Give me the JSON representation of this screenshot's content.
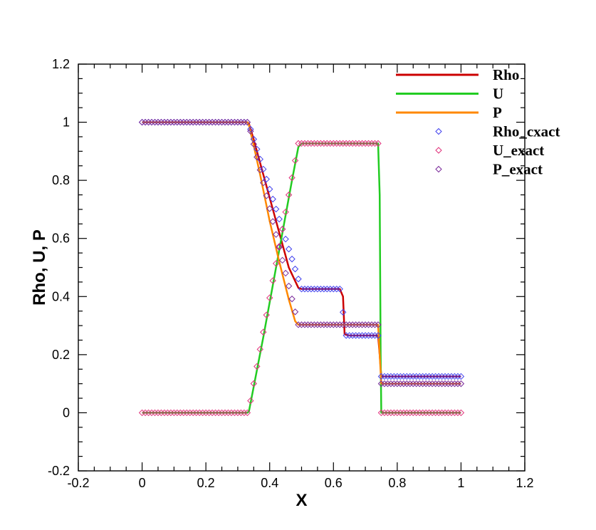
{
  "chart_data": {
    "type": "line",
    "title": "",
    "xlabel": "X",
    "ylabel": "Rho, U, P",
    "xlim": [
      -0.2,
      1.2
    ],
    "ylim": [
      -0.2,
      1.2
    ],
    "xticks": [
      "-0.2",
      "0",
      "0.2",
      "0.4",
      "0.6",
      "0.8",
      "1",
      "1.2"
    ],
    "xtick_values": [
      -0.2,
      0,
      0.2,
      0.4,
      0.6,
      0.8,
      1.0,
      1.2
    ],
    "yticks": [
      "-0.2",
      "0",
      "0.2",
      "0.4",
      "0.6",
      "0.8",
      "1",
      "1.2"
    ],
    "ytick_values": [
      -0.2,
      0,
      0.2,
      0.4,
      0.6,
      0.8,
      1.0,
      1.2
    ],
    "grid": false,
    "legend_position": "top-right",
    "series": [
      {
        "name": "Rho",
        "kind": "line",
        "color": "#cc0000",
        "x": [
          0.0,
          0.33,
          0.335,
          0.35,
          0.37,
          0.4,
          0.43,
          0.46,
          0.49,
          0.5,
          0.62,
          0.63,
          0.635,
          0.65,
          0.74,
          0.745,
          0.75,
          1.0
        ],
        "y": [
          1.0,
          1.0,
          0.995,
          0.94,
          0.86,
          0.74,
          0.62,
          0.5,
          0.43,
          0.426,
          0.426,
          0.4,
          0.27,
          0.266,
          0.266,
          0.2,
          0.125,
          0.125
        ]
      },
      {
        "name": "U",
        "kind": "line",
        "color": "#22cc22",
        "x": [
          0.0,
          0.33,
          0.335,
          0.35,
          0.38,
          0.41,
          0.44,
          0.47,
          0.49,
          0.5,
          0.74,
          0.745,
          0.748,
          0.75,
          1.0
        ],
        "y": [
          0.0,
          0.0,
          0.005,
          0.09,
          0.26,
          0.44,
          0.62,
          0.8,
          0.915,
          0.927,
          0.927,
          0.75,
          0.2,
          0.0,
          0.0
        ]
      },
      {
        "name": "P",
        "kind": "line",
        "color": "#ff8800",
        "x": [
          0.0,
          0.33,
          0.335,
          0.35,
          0.37,
          0.4,
          0.43,
          0.46,
          0.48,
          0.49,
          0.74,
          0.745,
          0.75,
          1.0
        ],
        "y": [
          1.0,
          1.0,
          0.99,
          0.92,
          0.82,
          0.66,
          0.52,
          0.39,
          0.315,
          0.303,
          0.303,
          0.2,
          0.1,
          0.1
        ]
      },
      {
        "name": "Rho_cxact",
        "kind": "markers",
        "color": "#4040ee",
        "x": [
          0.0,
          0.333,
          0.5,
          0.625,
          0.635,
          0.745,
          0.75,
          1.0
        ],
        "y": [
          1.0,
          1.0,
          0.426,
          0.426,
          0.266,
          0.266,
          0.125,
          0.125
        ]
      },
      {
        "name": "U_exact",
        "kind": "markers",
        "color": "#e0307a",
        "x": [
          0.0,
          0.333,
          0.49,
          0.745,
          0.75,
          1.0
        ],
        "y": [
          0.0,
          0.0,
          0.927,
          0.927,
          0.0,
          0.0
        ]
      },
      {
        "name": "P_exact",
        "kind": "markers",
        "color": "#7a2a9a",
        "x": [
          0.0,
          0.333,
          0.49,
          0.745,
          0.75,
          1.0
        ],
        "y": [
          1.0,
          1.0,
          0.303,
          0.303,
          0.1,
          0.1
        ]
      }
    ]
  }
}
